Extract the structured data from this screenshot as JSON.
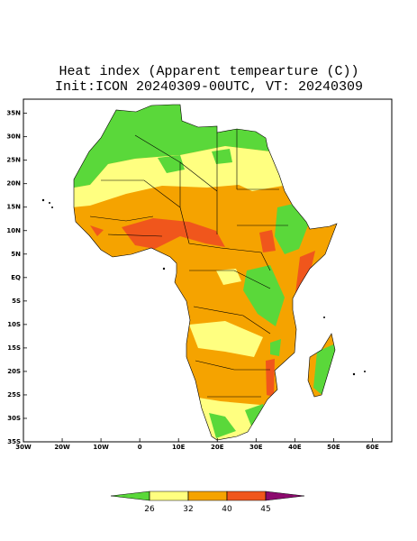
{
  "title": "Heat index (Apparent tempearture (C))",
  "subtitle": "Init:ICON 20240309-00UTC, VT: 20240309",
  "map": {
    "xlim": [
      -30,
      65
    ],
    "ylim": [
      -35,
      38
    ],
    "xticks": [
      {
        "value": -30,
        "label": "30W"
      },
      {
        "value": -20,
        "label": "20W"
      },
      {
        "value": -10,
        "label": "10W"
      },
      0,
      {
        "value": 10,
        "label": "10E"
      },
      {
        "value": 20,
        "label": "20E"
      },
      {
        "value": 30,
        "label": "30E"
      },
      {
        "value": 40,
        "label": "40E"
      },
      {
        "value": 50,
        "label": "50E"
      },
      {
        "value": 60,
        "label": "60E"
      }
    ],
    "yticks": [
      {
        "value": 35,
        "label": "35N"
      },
      {
        "value": 30,
        "label": "30N"
      },
      {
        "value": 25,
        "label": "25N"
      },
      {
        "value": 20,
        "label": "20N"
      },
      {
        "value": 15,
        "label": "15N"
      },
      {
        "value": 10,
        "label": "10N"
      },
      {
        "value": 5,
        "label": "5N"
      },
      {
        "value": 0,
        "label": "EQ"
      },
      {
        "value": -5,
        "label": "5S"
      },
      {
        "value": -10,
        "label": "10S"
      },
      {
        "value": -15,
        "label": "15S"
      },
      {
        "value": -20,
        "label": "20S"
      },
      {
        "value": -25,
        "label": "25S"
      },
      {
        "value": -30,
        "label": "30S"
      },
      {
        "value": -35,
        "label": "35S"
      }
    ]
  },
  "colorbar": {
    "levels": [
      26,
      32,
      40,
      45
    ],
    "colors": [
      "#5ad83a",
      "#ffff80",
      "#f5a300",
      "#f0561c",
      "#8c0a6e"
    ]
  }
}
